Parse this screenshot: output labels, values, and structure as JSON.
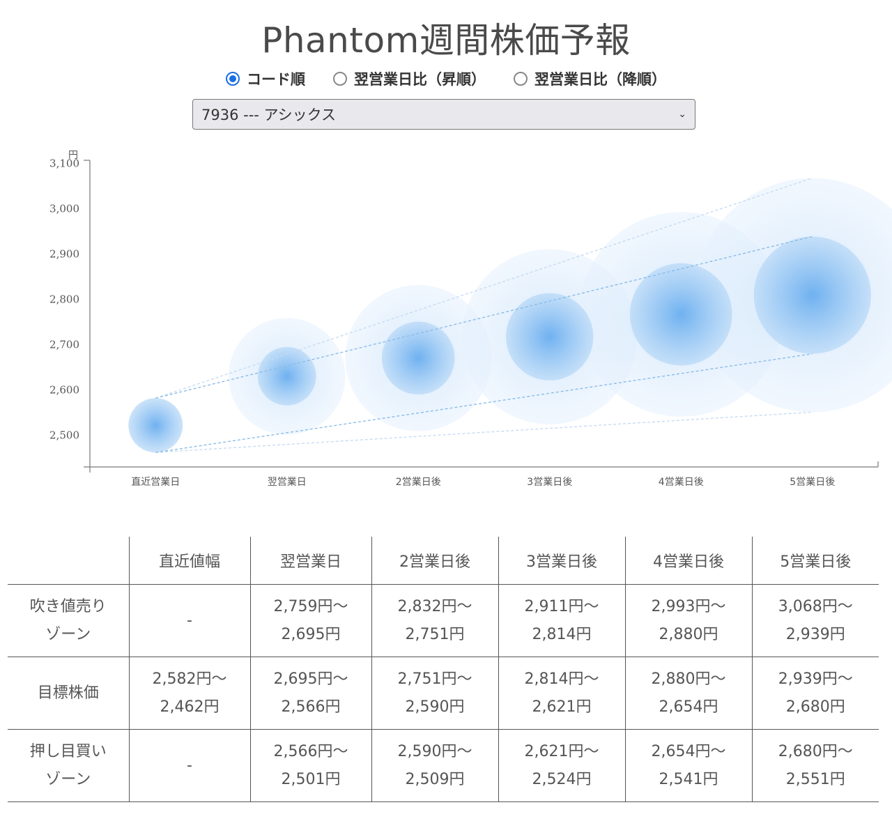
{
  "page": {
    "title": "Phantom週間株価予報"
  },
  "sort_options": [
    {
      "label": "コード順",
      "checked": true
    },
    {
      "label": "翌営業日比（昇順）",
      "checked": false
    },
    {
      "label": "翌営業日比（降順）",
      "checked": false
    }
  ],
  "stock_select": {
    "value": "7936 --- アシックス"
  },
  "colors": {
    "bubble_core": "#6fb1f0",
    "bubble_halo": "#cfe5fb",
    "dashed_mid": "#8bbce8",
    "dashed_outer": "#c5dcf3",
    "accent": "#1a6ee6"
  },
  "chart_data": {
    "type": "bubble-range",
    "y_unit": "円",
    "ylim": [
      2430,
      3115
    ],
    "yticks": [
      2500,
      2600,
      2700,
      2800,
      2900,
      3000,
      3100
    ],
    "ytick_labels": [
      "2,500",
      "2,600",
      "2,700",
      "2,800",
      "2,900",
      "3,000",
      "3,100"
    ],
    "categories": [
      "直近営業日",
      "翌営業日",
      "2営業日後",
      "3営業日後",
      "4営業日後",
      "5営業日後"
    ],
    "center": [
      2522,
      2630,
      2670,
      2718,
      2767,
      2810
    ],
    "target_high": [
      2582,
      2695,
      2751,
      2814,
      2880,
      2939
    ],
    "target_low": [
      2462,
      2566,
      2590,
      2621,
      2654,
      2680
    ],
    "outer_high": [
      2582,
      2759,
      2832,
      2911,
      2993,
      3068
    ],
    "outer_low": [
      2462,
      2501,
      2509,
      2524,
      2541,
      2551
    ],
    "grid": false,
    "legend": "none"
  },
  "table": {
    "headers": [
      "",
      "直近値幅",
      "翌営業日",
      "2営業日後",
      "3営業日後",
      "4営業日後",
      "5営業日後"
    ],
    "rows": [
      {
        "label_line1": "吹き値売り",
        "label_line2": "ゾーン",
        "cells": [
          {
            "l1": "-",
            "l2": ""
          },
          {
            "l1": "2,759円～",
            "l2": "2,695円"
          },
          {
            "l1": "2,832円～",
            "l2": "2,751円"
          },
          {
            "l1": "2,911円～",
            "l2": "2,814円"
          },
          {
            "l1": "2,993円～",
            "l2": "2,880円"
          },
          {
            "l1": "3,068円～",
            "l2": "2,939円"
          }
        ]
      },
      {
        "label_line1": "目標株価",
        "label_line2": "",
        "cells": [
          {
            "l1": "2,582円～",
            "l2": "2,462円"
          },
          {
            "l1": "2,695円～",
            "l2": "2,566円"
          },
          {
            "l1": "2,751円～",
            "l2": "2,590円"
          },
          {
            "l1": "2,814円～",
            "l2": "2,621円"
          },
          {
            "l1": "2,880円～",
            "l2": "2,654円"
          },
          {
            "l1": "2,939円～",
            "l2": "2,680円"
          }
        ]
      },
      {
        "label_line1": "押し目買い",
        "label_line2": "ゾーン",
        "cells": [
          {
            "l1": "-",
            "l2": ""
          },
          {
            "l1": "2,566円～",
            "l2": "2,501円"
          },
          {
            "l1": "2,590円～",
            "l2": "2,509円"
          },
          {
            "l1": "2,621円～",
            "l2": "2,524円"
          },
          {
            "l1": "2,654円～",
            "l2": "2,541円"
          },
          {
            "l1": "2,680円～",
            "l2": "2,551円"
          }
        ]
      }
    ]
  }
}
